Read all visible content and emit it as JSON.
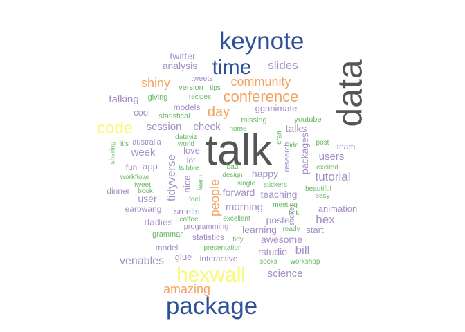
{
  "colors": {
    "dark_gray": "#555555",
    "navy": "#2d5199",
    "orange": "#f4a261",
    "yellow": "#f9f871",
    "lavender": "#a38fc5",
    "green": "#68b964"
  },
  "words": [
    {
      "text": "talk",
      "color": "dark_gray"
    },
    {
      "text": "data",
      "color": "dark_gray"
    },
    {
      "text": "keynote",
      "color": "navy"
    },
    {
      "text": "package",
      "color": "navy"
    },
    {
      "text": "time",
      "color": "navy"
    },
    {
      "text": "hexwall",
      "color": "yellow"
    },
    {
      "text": "code",
      "color": "yellow"
    },
    {
      "text": "conference",
      "color": "orange"
    },
    {
      "text": "community",
      "color": "orange"
    },
    {
      "text": "shiny",
      "color": "orange"
    },
    {
      "text": "day",
      "color": "orange"
    },
    {
      "text": "people",
      "color": "orange"
    },
    {
      "text": "amazing",
      "color": "orange"
    },
    {
      "text": "slides",
      "color": "lavender"
    },
    {
      "text": "talking",
      "color": "lavender"
    },
    {
      "text": "session",
      "color": "lavender"
    },
    {
      "text": "check",
      "color": "lavender"
    },
    {
      "text": "talks",
      "color": "lavender"
    },
    {
      "text": "week",
      "color": "lavender"
    },
    {
      "text": "tidyverse",
      "color": "lavender"
    },
    {
      "text": "users",
      "color": "lavender"
    },
    {
      "text": "tutorial",
      "color": "lavender"
    },
    {
      "text": "morning",
      "color": "lavender"
    },
    {
      "text": "hex",
      "color": "lavender"
    },
    {
      "text": "venables",
      "color": "lavender"
    },
    {
      "text": "science",
      "color": "lavender"
    },
    {
      "text": "bill",
      "color": "lavender"
    },
    {
      "text": "rstudio",
      "color": "lavender"
    },
    {
      "text": "awesome",
      "color": "lavender"
    },
    {
      "text": "poster",
      "color": "lavender"
    },
    {
      "text": "learning",
      "color": "lavender"
    },
    {
      "text": "rladies",
      "color": "lavender"
    },
    {
      "text": "animation",
      "color": "lavender"
    },
    {
      "text": "teaching",
      "color": "lavender"
    },
    {
      "text": "happy",
      "color": "lavender"
    },
    {
      "text": "forward",
      "color": "lavender"
    },
    {
      "text": "nice",
      "color": "lavender"
    },
    {
      "text": "user",
      "color": "lavender"
    },
    {
      "text": "packages",
      "color": "lavender"
    },
    {
      "text": "analysis",
      "color": "lavender"
    },
    {
      "text": "twitter",
      "color": "lavender"
    },
    {
      "text": "gganimate",
      "color": "lavender"
    },
    {
      "text": "cool",
      "color": "lavender"
    },
    {
      "text": "love",
      "color": "lavender"
    },
    {
      "text": "app",
      "color": "lavender"
    },
    {
      "text": "fun",
      "color": "lavender"
    },
    {
      "text": "smells",
      "color": "lavender"
    },
    {
      "text": "interactive",
      "color": "lavender"
    },
    {
      "text": "glue",
      "color": "lavender"
    },
    {
      "text": "statistics",
      "color": "lavender"
    },
    {
      "text": "earowang",
      "color": "lavender"
    },
    {
      "text": "start",
      "color": "lavender"
    },
    {
      "text": "team",
      "color": "lavender"
    },
    {
      "text": "models",
      "color": "lavender"
    },
    {
      "text": "lot",
      "color": "lavender"
    },
    {
      "text": "model",
      "color": "lavender"
    },
    {
      "text": "dinner",
      "color": "lavender"
    },
    {
      "text": "australia",
      "color": "lavender"
    },
    {
      "text": "tweets",
      "color": "lavender"
    },
    {
      "text": "research",
      "color": "lavender"
    },
    {
      "text": "sticker",
      "color": "lavender"
    },
    {
      "text": "programming",
      "color": "lavender"
    },
    {
      "text": "giving",
      "color": "green"
    },
    {
      "text": "version",
      "color": "green"
    },
    {
      "text": "tips",
      "color": "green"
    },
    {
      "text": "recipes",
      "color": "green"
    },
    {
      "text": "statistical",
      "color": "green"
    },
    {
      "text": "missing",
      "color": "green"
    },
    {
      "text": "youtube",
      "color": "green"
    },
    {
      "text": "home",
      "color": "green"
    },
    {
      "text": "cran",
      "color": "green"
    },
    {
      "text": "it’s",
      "color": "green"
    },
    {
      "text": "dataviz",
      "color": "green"
    },
    {
      "text": "world",
      "color": "green"
    },
    {
      "text": "ide",
      "color": "green"
    },
    {
      "text": "post",
      "color": "green"
    },
    {
      "text": "sharing",
      "color": "green"
    },
    {
      "text": "tsibble",
      "color": "green"
    },
    {
      "text": "bad",
      "color": "green"
    },
    {
      "text": "design",
      "color": "green"
    },
    {
      "text": "excited",
      "color": "green"
    },
    {
      "text": "workflowr",
      "color": "green"
    },
    {
      "text": "tweet",
      "color": "green"
    },
    {
      "text": "book",
      "color": "green"
    },
    {
      "text": "learn",
      "color": "green"
    },
    {
      "text": "single",
      "color": "green"
    },
    {
      "text": "stickers",
      "color": "green"
    },
    {
      "text": "beautiful",
      "color": "green"
    },
    {
      "text": "easy",
      "color": "green"
    },
    {
      "text": "feel",
      "color": "green"
    },
    {
      "text": "meeting",
      "color": "green"
    },
    {
      "text": "link",
      "color": "green"
    },
    {
      "text": "coffee",
      "color": "green"
    },
    {
      "text": "excellent",
      "color": "green"
    },
    {
      "text": "ready",
      "color": "green"
    },
    {
      "text": "grammar",
      "color": "green"
    },
    {
      "text": "tidy",
      "color": "green"
    },
    {
      "text": "presentation",
      "color": "green"
    },
    {
      "text": "socks",
      "color": "green"
    },
    {
      "text": "workshop",
      "color": "green"
    }
  ]
}
